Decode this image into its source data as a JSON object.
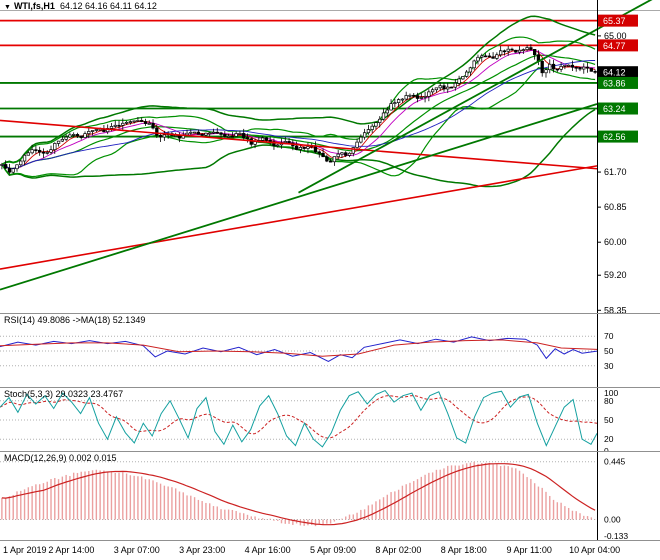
{
  "time_axis": {
    "labels": [
      "1 Apr 2019",
      "2 Apr 14:00",
      "3 Apr 07:00",
      "3 Apr 23:00",
      "4 Apr 16:00",
      "5 Apr 09:00",
      "8 Apr 02:00",
      "8 Apr 18:00",
      "9 Apr 11:00",
      "10 Apr 04:00"
    ]
  },
  "chart_data": [
    {
      "type": "candlestick",
      "panel": "main",
      "title": "WTI,fs,H1",
      "ohlc_display": "64.12 64.16 64.11 64.12",
      "open": 64.12,
      "high": 64.16,
      "low": 64.11,
      "close": 64.12,
      "ylim": [
        58.26,
        65.87
      ],
      "bars": 158,
      "y_ticks": [
        {
          "label": "65.00",
          "value": 65.0
        },
        {
          "label": "61.70",
          "value": 61.7
        },
        {
          "label": "60.85",
          "value": 60.85
        },
        {
          "label": "60.00",
          "value": 60.0
        },
        {
          "label": "59.20",
          "value": 59.2
        },
        {
          "label": "58.35",
          "value": 58.35
        }
      ],
      "price_levels": [
        {
          "label": "65.37",
          "value": 65.37,
          "role": "resistance",
          "line_color": "#e60000",
          "badge_color": "#d40000"
        },
        {
          "label": "64.77",
          "value": 64.77,
          "role": "resistance",
          "line_color": "#e60000",
          "badge_color": "#d40000"
        },
        {
          "label": "64.12",
          "value": 64.12,
          "role": "current-price",
          "line_color": "none",
          "badge_color": "#000000"
        },
        {
          "label": "63.86",
          "value": 63.86,
          "role": "support",
          "line_color": "#007800",
          "badge_color": "#007800"
        },
        {
          "label": "63.24",
          "value": 63.24,
          "role": "support",
          "line_color": "#007800",
          "badge_color": "#007800"
        },
        {
          "label": "62.56",
          "value": 62.56,
          "role": "support",
          "line_color": "#007800",
          "badge_color": "#007800"
        }
      ],
      "trendlines": [
        {
          "name": "descending-red-trendline",
          "t1": 0,
          "p1": 62.95,
          "t2": 1,
          "p2": 61.78,
          "color": "#e00000",
          "width": 1.6
        },
        {
          "name": "ascending-red-trendline",
          "t1": 0,
          "p1": 59.35,
          "t2": 1,
          "p2": 61.85,
          "color": "#e00000",
          "width": 1.6
        },
        {
          "name": "ascending-green-trendline",
          "t1": 0,
          "p1": 58.85,
          "t2": 1,
          "p2": 63.35,
          "color": "#007800",
          "width": 1.8
        },
        {
          "name": "steep-ascending-green-trendline",
          "t1": 0.5,
          "p1": 61.2,
          "t2": 1.1,
          "p2": 65.95,
          "color": "#007800",
          "width": 1.8
        }
      ],
      "overlay_colors": {
        "bollinger": "#009000",
        "bollinger_slow": "#007800",
        "ma_fast": "#d00000",
        "ma_mid": "#c000c0",
        "ma_slow": "#2020c0"
      },
      "candle_colors": {
        "bull_fill": "#ffffff",
        "bear_fill": "#000000",
        "outline": "#000000"
      },
      "price_path": [
        [
          0.0,
          61.9
        ],
        [
          0.015,
          61.7
        ],
        [
          0.035,
          62.05
        ],
        [
          0.055,
          62.25
        ],
        [
          0.075,
          62.15
        ],
        [
          0.095,
          62.45
        ],
        [
          0.115,
          62.6
        ],
        [
          0.135,
          62.55
        ],
        [
          0.155,
          62.75
        ],
        [
          0.175,
          62.7
        ],
        [
          0.195,
          62.85
        ],
        [
          0.215,
          62.9
        ],
        [
          0.235,
          62.95
        ],
        [
          0.25,
          62.85
        ],
        [
          0.265,
          62.5
        ],
        [
          0.28,
          62.65
        ],
        [
          0.3,
          62.55
        ],
        [
          0.32,
          62.7
        ],
        [
          0.34,
          62.6
        ],
        [
          0.36,
          62.7
        ],
        [
          0.38,
          62.55
        ],
        [
          0.4,
          62.65
        ],
        [
          0.42,
          62.4
        ],
        [
          0.44,
          62.5
        ],
        [
          0.46,
          62.35
        ],
        [
          0.48,
          62.45
        ],
        [
          0.5,
          62.25
        ],
        [
          0.52,
          62.35
        ],
        [
          0.54,
          62.05
        ],
        [
          0.555,
          61.95
        ],
        [
          0.57,
          62.2
        ],
        [
          0.585,
          62.1
        ],
        [
          0.6,
          62.45
        ],
        [
          0.62,
          62.75
        ],
        [
          0.64,
          63.05
        ],
        [
          0.66,
          63.4
        ],
        [
          0.675,
          63.5
        ],
        [
          0.69,
          63.55
        ],
        [
          0.705,
          63.45
        ],
        [
          0.72,
          63.65
        ],
        [
          0.735,
          63.8
        ],
        [
          0.75,
          63.72
        ],
        [
          0.765,
          63.85
        ],
        [
          0.78,
          64.05
        ],
        [
          0.795,
          64.35
        ],
        [
          0.81,
          64.55
        ],
        [
          0.825,
          64.45
        ],
        [
          0.84,
          64.6
        ],
        [
          0.855,
          64.7
        ],
        [
          0.87,
          64.6
        ],
        [
          0.885,
          64.72
        ],
        [
          0.9,
          64.55
        ],
        [
          0.912,
          64.05
        ],
        [
          0.922,
          64.3
        ],
        [
          0.935,
          64.18
        ],
        [
          0.95,
          64.3
        ],
        [
          0.965,
          64.2
        ],
        [
          0.98,
          64.22
        ],
        [
          1.0,
          64.12
        ]
      ]
    },
    {
      "type": "line",
      "panel": "rsi",
      "label": "RSI(14) 49.8086 ->MA(18) 52.1349",
      "rsi_value": 49.8086,
      "ma_value": 52.1349,
      "ylim": [
        0,
        100
      ],
      "levels": [
        {
          "label": "70",
          "value": 70
        },
        {
          "label": "50",
          "value": 50
        },
        {
          "label": "30",
          "value": 30
        }
      ],
      "series": [
        {
          "name": "RSI",
          "color": "#2222cc",
          "points": [
            [
              0,
              56
            ],
            [
              0.03,
              62
            ],
            [
              0.06,
              58
            ],
            [
              0.09,
              63
            ],
            [
              0.12,
              60
            ],
            [
              0.15,
              64
            ],
            [
              0.18,
              60
            ],
            [
              0.21,
              63
            ],
            [
              0.24,
              57
            ],
            [
              0.26,
              42
            ],
            [
              0.28,
              50
            ],
            [
              0.31,
              46
            ],
            [
              0.34,
              54
            ],
            [
              0.37,
              49
            ],
            [
              0.4,
              55
            ],
            [
              0.43,
              45
            ],
            [
              0.46,
              52
            ],
            [
              0.49,
              43
            ],
            [
              0.52,
              48
            ],
            [
              0.55,
              36
            ],
            [
              0.57,
              45
            ],
            [
              0.59,
              41
            ],
            [
              0.61,
              55
            ],
            [
              0.64,
              60
            ],
            [
              0.67,
              65
            ],
            [
              0.7,
              60
            ],
            [
              0.73,
              66
            ],
            [
              0.76,
              62
            ],
            [
              0.79,
              69
            ],
            [
              0.82,
              64
            ],
            [
              0.85,
              67
            ],
            [
              0.88,
              66
            ],
            [
              0.9,
              58
            ],
            [
              0.915,
              40
            ],
            [
              0.93,
              53
            ],
            [
              0.945,
              46
            ],
            [
              0.96,
              52
            ],
            [
              0.975,
              47
            ],
            [
              1.0,
              49.8
            ]
          ]
        },
        {
          "name": "MA",
          "color": "#cc2222",
          "points": [
            [
              0,
              57
            ],
            [
              0.06,
              59
            ],
            [
              0.12,
              61
            ],
            [
              0.18,
              61
            ],
            [
              0.24,
              58
            ],
            [
              0.3,
              49
            ],
            [
              0.36,
              50
            ],
            [
              0.42,
              49
            ],
            [
              0.48,
              47
            ],
            [
              0.54,
              43
            ],
            [
              0.6,
              46
            ],
            [
              0.66,
              58
            ],
            [
              0.72,
              62
            ],
            [
              0.78,
              64
            ],
            [
              0.84,
              65
            ],
            [
              0.9,
              61
            ],
            [
              0.94,
              54
            ],
            [
              1.0,
              52.1
            ]
          ]
        }
      ]
    },
    {
      "type": "line",
      "panel": "stochastic",
      "label": "Stoch(5,3,3) 29.0323 23.4767",
      "main_value": 29.0323,
      "signal_value": 23.4767,
      "ylim": [
        0,
        100
      ],
      "y_ticks": [
        {
          "label": "100",
          "value": 100
        },
        {
          "label": "80",
          "value": 80
        },
        {
          "label": "50",
          "value": 50
        },
        {
          "label": "20",
          "value": 20
        },
        {
          "label": "0",
          "value": 0
        }
      ],
      "dotted_levels": [
        80,
        50,
        20
      ],
      "main_color": "#14a0a0",
      "signal_color": "#cc2222",
      "points": [
        [
          0,
          70
        ],
        [
          0.015,
          85
        ],
        [
          0.03,
          62
        ],
        [
          0.045,
          90
        ],
        [
          0.06,
          75
        ],
        [
          0.075,
          88
        ],
        [
          0.09,
          68
        ],
        [
          0.105,
          92
        ],
        [
          0.12,
          78
        ],
        [
          0.135,
          60
        ],
        [
          0.15,
          85
        ],
        [
          0.165,
          45
        ],
        [
          0.18,
          20
        ],
        [
          0.195,
          55
        ],
        [
          0.21,
          30
        ],
        [
          0.225,
          14
        ],
        [
          0.24,
          45
        ],
        [
          0.255,
          25
        ],
        [
          0.27,
          60
        ],
        [
          0.285,
          80
        ],
        [
          0.3,
          52
        ],
        [
          0.315,
          22
        ],
        [
          0.33,
          68
        ],
        [
          0.345,
          85
        ],
        [
          0.36,
          32
        ],
        [
          0.375,
          12
        ],
        [
          0.39,
          42
        ],
        [
          0.405,
          16
        ],
        [
          0.42,
          35
        ],
        [
          0.435,
          72
        ],
        [
          0.45,
          88
        ],
        [
          0.465,
          60
        ],
        [
          0.48,
          25
        ],
        [
          0.495,
          10
        ],
        [
          0.51,
          45
        ],
        [
          0.525,
          20
        ],
        [
          0.54,
          8
        ],
        [
          0.555,
          30
        ],
        [
          0.57,
          65
        ],
        [
          0.585,
          88
        ],
        [
          0.6,
          94
        ],
        [
          0.615,
          75
        ],
        [
          0.63,
          90
        ],
        [
          0.645,
          96
        ],
        [
          0.66,
          78
        ],
        [
          0.675,
          88
        ],
        [
          0.69,
          92
        ],
        [
          0.705,
          65
        ],
        [
          0.72,
          88
        ],
        [
          0.735,
          94
        ],
        [
          0.75,
          60
        ],
        [
          0.765,
          22
        ],
        [
          0.78,
          14
        ],
        [
          0.795,
          55
        ],
        [
          0.81,
          85
        ],
        [
          0.825,
          92
        ],
        [
          0.84,
          95
        ],
        [
          0.855,
          70
        ],
        [
          0.87,
          86
        ],
        [
          0.885,
          90
        ],
        [
          0.9,
          45
        ],
        [
          0.915,
          10
        ],
        [
          0.93,
          40
        ],
        [
          0.945,
          70
        ],
        [
          0.96,
          82
        ],
        [
          0.975,
          20
        ],
        [
          0.99,
          12
        ],
        [
          1.0,
          29
        ]
      ]
    },
    {
      "type": "bar",
      "panel": "macd",
      "label": "MACD(12,26,9) 0.002 0.015",
      "macd_value": 0.002,
      "signal_value": 0.015,
      "ylim": [
        -0.165,
        0.52
      ],
      "y_ticks": [
        {
          "label": "0.445",
          "value": 0.445
        },
        {
          "label": "0.00",
          "value": 0.0
        },
        {
          "label": "-0.133",
          "value": -0.133
        }
      ],
      "histogram_color": "#eba0a0",
      "signal_color": "#cc2222",
      "points": [
        [
          0,
          0.16
        ],
        [
          0.04,
          0.24
        ],
        [
          0.08,
          0.3
        ],
        [
          0.12,
          0.35
        ],
        [
          0.16,
          0.38
        ],
        [
          0.2,
          0.36
        ],
        [
          0.24,
          0.32
        ],
        [
          0.28,
          0.26
        ],
        [
          0.32,
          0.18
        ],
        [
          0.36,
          0.1
        ],
        [
          0.4,
          0.05
        ],
        [
          0.44,
          0.01
        ],
        [
          0.48,
          -0.03
        ],
        [
          0.52,
          -0.05
        ],
        [
          0.56,
          -0.02
        ],
        [
          0.6,
          0.06
        ],
        [
          0.64,
          0.16
        ],
        [
          0.68,
          0.27
        ],
        [
          0.72,
          0.36
        ],
        [
          0.76,
          0.42
        ],
        [
          0.8,
          0.44
        ],
        [
          0.84,
          0.42
        ],
        [
          0.87,
          0.38
        ],
        [
          0.9,
          0.28
        ],
        [
          0.93,
          0.16
        ],
        [
          0.96,
          0.07
        ],
        [
          1.0,
          0.002
        ]
      ]
    }
  ]
}
